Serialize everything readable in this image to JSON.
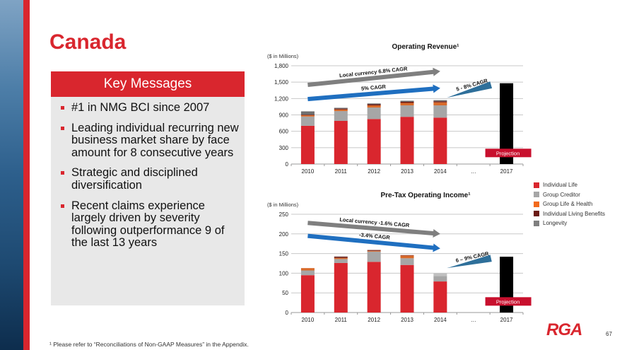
{
  "slide": {
    "title": "Canada",
    "page_number": "67",
    "logo_text": "RGA",
    "footnote": "¹ Please refer to “Reconciliations of Non-GAAP Measures” in the Appendix."
  },
  "key_messages": {
    "heading": "Key Messages",
    "bullets": [
      "#1 in NMG BCI since 2007",
      "Leading individual recurring new business market share by face amount for 8 consecutive years",
      "Strategic and disciplined diversification",
      "Recent claims experience largely driven by severity following outperformance 9 of the last 13 years"
    ]
  },
  "legend": [
    {
      "name": "Individual Life",
      "color": "#d9262e"
    },
    {
      "name": "Group Creditor",
      "color": "#a6a6a6"
    },
    {
      "name": "Group Life & Health",
      "color": "#f26b1d"
    },
    {
      "name": "Individual Living Benefits",
      "color": "#6b1a14"
    },
    {
      "name": "Longevity",
      "color": "#7f7f7f"
    }
  ],
  "chart_data": [
    {
      "type": "bar",
      "stacked": true,
      "title": "Operating Revenue¹",
      "unit_label": "($ in Millions)",
      "categories": [
        "2010",
        "2011",
        "2012",
        "2013",
        "2014",
        "…",
        "2017"
      ],
      "yticks": [
        "0",
        "300",
        "600",
        "900",
        "1,200",
        "1,500",
        "1,800"
      ],
      "ylim": [
        0,
        1800
      ],
      "grid": true,
      "series": [
        {
          "name": "Individual Life",
          "color": "#d9262e",
          "values": [
            700,
            790,
            825,
            865,
            850,
            null,
            null
          ]
        },
        {
          "name": "Group Creditor",
          "color": "#a6a6a6",
          "values": [
            170,
            180,
            210,
            210,
            225,
            null,
            null
          ]
        },
        {
          "name": "Group Life & Health",
          "color": "#d86a2a",
          "values": [
            25,
            30,
            40,
            45,
            55,
            null,
            null
          ]
        },
        {
          "name": "Individual Living Benefits",
          "color": "#6b1a14",
          "values": [
            10,
            15,
            20,
            20,
            20,
            null,
            null
          ]
        },
        {
          "name": "Longevity",
          "color": "#6f6f6f",
          "values": [
            60,
            15,
            15,
            20,
            20,
            null,
            null
          ]
        }
      ],
      "projection": {
        "category": "2017",
        "value": 1480,
        "color": "#000000",
        "label": "Projection"
      },
      "annotations": [
        {
          "text": "Local currency 6.8% CAGR",
          "arrow_color": "#7f7f7f",
          "from": [
            2010,
            1450
          ],
          "to": [
            2014,
            1700
          ]
        },
        {
          "text": "5% CAGR",
          "arrow_color": "#1f6fc0",
          "from": [
            2010,
            1190
          ],
          "to": [
            2014,
            1390
          ]
        },
        {
          "text": "5 - 8% CAGR",
          "arrow_color": "#2e6f9a",
          "from": [
            2014.3,
            1215
          ],
          "to": [
            2016.3,
            1450
          ]
        }
      ]
    },
    {
      "type": "bar",
      "stacked": true,
      "title": "Pre-Tax Operating Income¹",
      "unit_label": "($ in Millions)",
      "categories": [
        "2010",
        "2011",
        "2012",
        "2013",
        "2014",
        "…",
        "2017"
      ],
      "yticks": [
        "0",
        "50",
        "100",
        "150",
        "200",
        "250"
      ],
      "ylim": [
        0,
        250
      ],
      "grid": true,
      "series": [
        {
          "name": "Individual Life",
          "color": "#d9262e",
          "values": [
            95,
            126,
            129,
            121,
            79,
            null,
            null
          ]
        },
        {
          "name": "Group Creditor",
          "color": "#a6a6a6",
          "values": [
            12,
            10,
            26,
            17,
            14,
            null,
            null
          ]
        },
        {
          "name": "Group Life & Health",
          "color": "#d86a2a",
          "values": [
            6,
            3,
            2,
            7,
            0,
            null,
            null
          ]
        },
        {
          "name": "Individual Living Benefits",
          "color": "#6b1a14",
          "values": [
            0,
            3,
            2,
            1,
            0,
            null,
            null
          ]
        },
        {
          "name": "Longevity",
          "color": "#c0c0c0",
          "values": [
            0,
            1,
            0,
            0,
            7,
            null,
            null
          ]
        }
      ],
      "projection": {
        "category": "2017",
        "value": 142,
        "color": "#000000",
        "label": "Projection"
      },
      "annotations": [
        {
          "text": "Local currency -1.6% CAGR",
          "arrow_color": "#7f7f7f",
          "from": [
            2010,
            228
          ],
          "to": [
            2014,
            200
          ]
        },
        {
          "text": "-3.4% CAGR",
          "arrow_color": "#1f6fc0",
          "from": [
            2010,
            195
          ],
          "to": [
            2014,
            163
          ]
        },
        {
          "text": "6 – 9% CAGR",
          "arrow_color": "#2e6f9a",
          "from": [
            2014.3,
            113
          ],
          "to": [
            2016.3,
            138
          ]
        }
      ]
    }
  ]
}
